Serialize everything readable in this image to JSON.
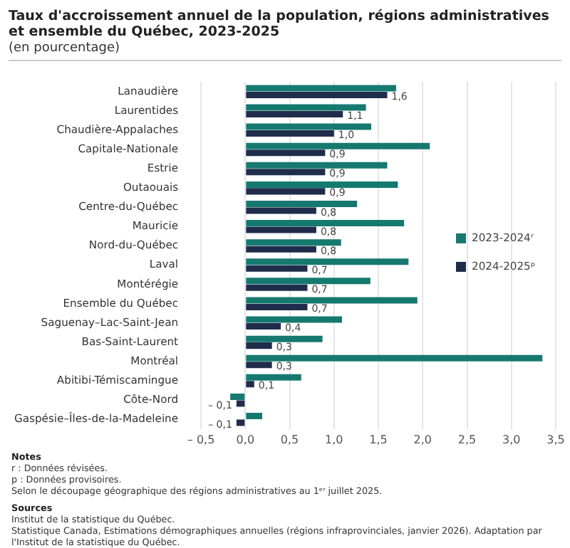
{
  "chart_data": {
    "type": "bar",
    "orientation": "horizontal",
    "title": "Taux d'accroissement annuel de la population, régions administratives et ensemble du Québec, 2023-2025",
    "subtitle": "(en pourcentage)",
    "categories": [
      "Lanaudière",
      "Laurentides",
      "Chaudière-Appalaches",
      "Capitale-Nationale",
      "Estrie",
      "Outaouais",
      "Centre-du-Québec",
      "Mauricie",
      "Nord-du-Québec",
      "Laval",
      "Montérégie",
      "Ensemble du Québec",
      "Saguenay–Lac-Saint-Jean",
      "Bas-Saint-Laurent",
      "Montréal",
      "Abitibi-Témiscamingue",
      "Côte-Nord",
      "Gaspésie–Îles-de-la-Madeleine"
    ],
    "series": [
      {
        "name": "2023-2024ʳ",
        "color": "#16796f",
        "values": [
          1.7,
          1.36,
          1.42,
          2.08,
          1.6,
          1.72,
          1.26,
          1.79,
          1.08,
          1.84,
          1.41,
          1.94,
          1.09,
          0.87,
          3.35,
          0.63,
          -0.17,
          0.19
        ]
      },
      {
        "name": "2024-2025ᵖ",
        "color": "#1f2c4c",
        "values": [
          1.6,
          1.1,
          1.0,
          0.9,
          0.9,
          0.9,
          0.8,
          0.8,
          0.8,
          0.7,
          0.7,
          0.7,
          0.4,
          0.3,
          0.3,
          0.1,
          -0.1,
          -0.1
        ],
        "value_labels": [
          "1,6",
          "1,1",
          "1,0",
          "0,9",
          "0,9",
          "0,9",
          "0,8",
          "0,8",
          "0,8",
          "0,7",
          "0,7",
          "0,7",
          "0,4",
          "0,3",
          "0,3",
          "0,1",
          "– 0,1",
          "– 0,1"
        ]
      }
    ],
    "xlim": [
      -0.5,
      3.5
    ],
    "xticks": [
      {
        "value": -0.5,
        "label": "– 0,5"
      },
      {
        "value": 0,
        "label": "0,0"
      },
      {
        "value": 0.5,
        "label": "0,5"
      },
      {
        "value": 1,
        "label": "1,0"
      },
      {
        "value": 1.5,
        "label": "1,5"
      },
      {
        "value": 2,
        "label": "2,0"
      },
      {
        "value": 2.5,
        "label": "2,5"
      },
      {
        "value": 3,
        "label": "3,0"
      },
      {
        "value": 3.5,
        "label": "3,5"
      }
    ],
    "grid": "x",
    "legend": "right",
    "annotations": [
      "Notes",
      "r : Données révisées.",
      "p : Données provisoires.",
      "Selon le découpage géographique des régions administratives au 1ᵉʳ juillet 2025.",
      "Sources",
      "Institut de la statistique du Québec.",
      "Statistique Canada, Estimations démographiques annuelles (régions infraprovinciales, janvier 2026). Adaptation par l'Institut de la statistique du Québec."
    ]
  }
}
